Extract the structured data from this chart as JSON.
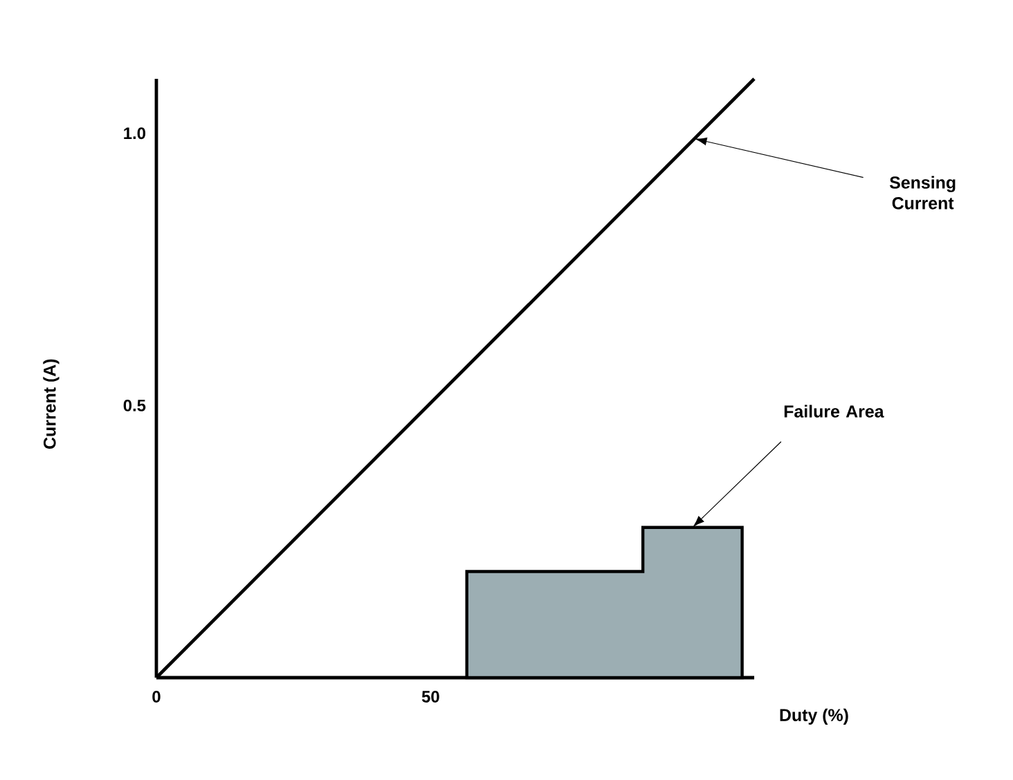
{
  "chart_data": {
    "type": "line",
    "xlabel": "Duty (%)",
    "ylabel": "Current (A)",
    "xlim": [
      0,
      109
    ],
    "ylim": [
      0,
      1.1
    ],
    "xticks": [
      0,
      50
    ],
    "yticks": [
      {
        "value": 0.5,
        "label": "0.5"
      },
      {
        "value": 1,
        "label": "1.0"
      }
    ],
    "series": [
      {
        "name": "Sensing Current",
        "color": "#000000",
        "x": [
          0,
          109
        ],
        "values": [
          0,
          1.1
        ]
      },
      {
        "name": "Failure Area",
        "type": "area",
        "color": "#9caeb3",
        "x": [
          56.6,
          88.7,
          88.7,
          106.8
        ],
        "values": [
          0.195,
          0.195,
          0.276,
          0.276
        ]
      }
    ],
    "grid": false,
    "legend": false,
    "line_style": "solid"
  }
}
